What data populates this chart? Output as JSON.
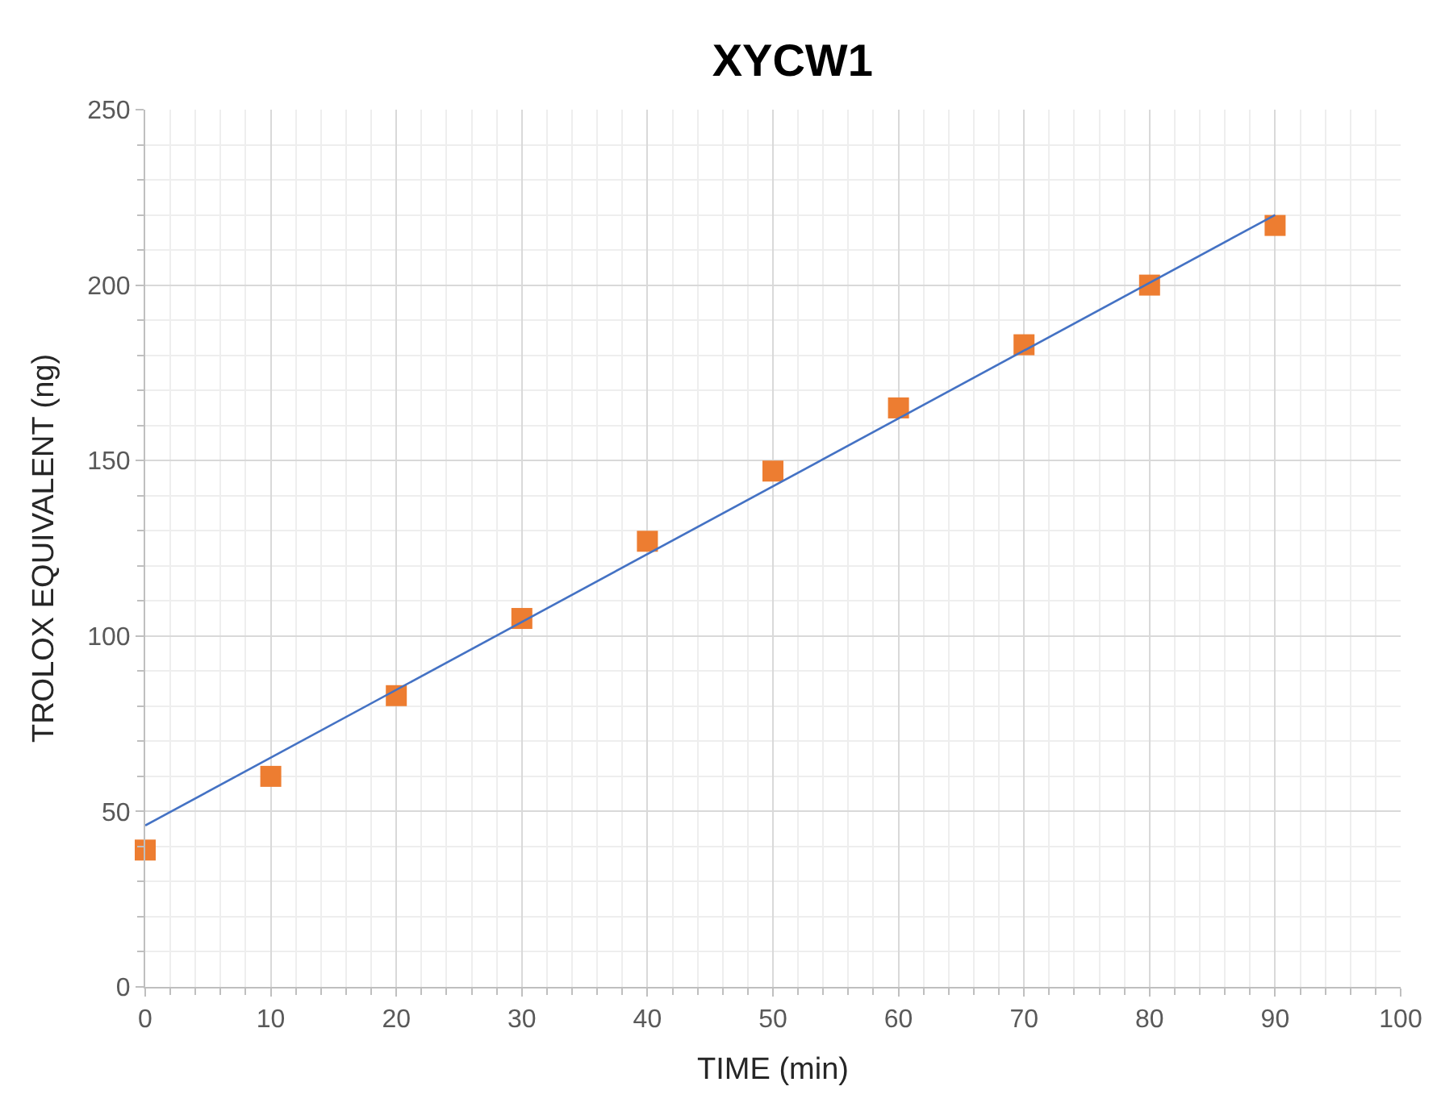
{
  "chart_data": {
    "type": "scatter",
    "title": "XYCW1",
    "xlabel": "TIME (min)",
    "ylabel": "TROLOX EQUIVALENT (ng)",
    "series": [
      {
        "color": "#ed7d31",
        "marker": "square",
        "x": [
          0,
          10,
          20,
          30,
          40,
          50,
          60,
          70,
          80,
          90
        ],
        "values": [
          39,
          60,
          83,
          105,
          127,
          147,
          165,
          183,
          200,
          217
        ]
      },
      {
        "type": "line",
        "color": "#4472c4",
        "marker": "none",
        "x": [
          0,
          90
        ],
        "values": [
          46,
          220
        ]
      }
    ],
    "xlim": [
      0,
      100
    ],
    "xticks": [
      0,
      10,
      20,
      30,
      40,
      50,
      60,
      70,
      80,
      90,
      100
    ],
    "ylim": [
      0,
      250
    ],
    "yticks": [
      0,
      50,
      100,
      150,
      200,
      250
    ],
    "grid": true,
    "legend": false
  }
}
